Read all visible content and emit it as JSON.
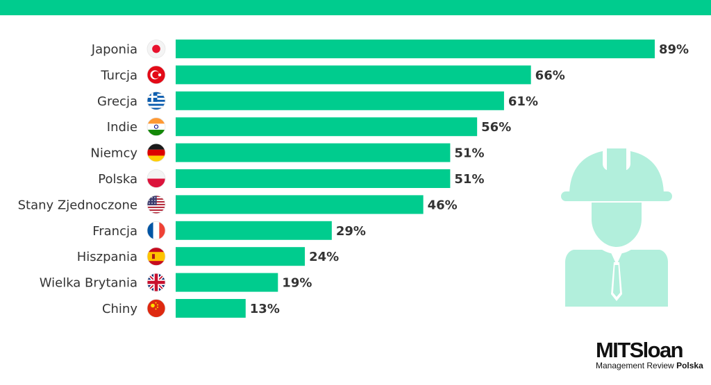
{
  "chart_data": {
    "type": "bar",
    "orientation": "horizontal",
    "categories": [
      "Japonia",
      "Turcja",
      "Grecja",
      "Indie",
      "Niemcy",
      "Polska",
      "Stany Zjednoczone",
      "Francja",
      "Hiszpania",
      "Wielka Brytania",
      "Chiny"
    ],
    "values": [
      89,
      66,
      61,
      56,
      51,
      51,
      46,
      29,
      24,
      19,
      13
    ],
    "value_labels": [
      "89%",
      "66%",
      "61%",
      "56%",
      "51%",
      "51%",
      "46%",
      "29%",
      "24%",
      "19%",
      "13%"
    ],
    "flag_icons": [
      "japan-flag-icon",
      "turkey-flag-icon",
      "greece-flag-icon",
      "india-flag-icon",
      "germany-flag-icon",
      "poland-flag-icon",
      "usa-flag-icon",
      "france-flag-icon",
      "spain-flag-icon",
      "uk-flag-icon",
      "china-flag-icon"
    ],
    "xlim": [
      0,
      89
    ],
    "unit": "%",
    "grid": false,
    "legend": "none",
    "bar_color": "#00cc8e",
    "title": "",
    "xlabel": "",
    "ylabel": ""
  },
  "decor": {
    "top_band_color": "#00cc8e",
    "illustration_icon": "construction-worker-icon",
    "illustration_color": "#b2efdc"
  },
  "brand": {
    "name": "MITSloan",
    "subtitle_regular": "Management Review",
    "subtitle_bold": "Polska"
  }
}
